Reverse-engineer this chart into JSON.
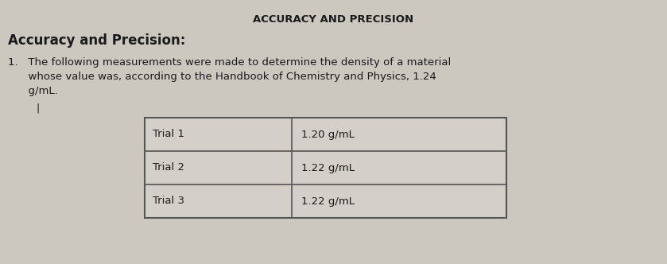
{
  "title": "ACCURACY AND PRECISION",
  "heading": "Accuracy and Precision:",
  "body_line1": "1.   The following measurements were made to determine the density of a material",
  "body_line2": "      whose value was, according to the Handbook of Chemistry and Physics, 1.24",
  "body_line3": "      g/mL.",
  "table_trials": [
    "Trial 1",
    "Trial 2",
    "Trial 3"
  ],
  "table_values": [
    "1.20 g/mL",
    "1.22 g/mL",
    "1.22 g/mL"
  ],
  "bg_color": "#ccc8c0",
  "table_bg": "#d4d0c9",
  "border_color": "#555555",
  "text_color": "#1a1a1a",
  "title_fontsize": 9.5,
  "heading_fontsize": 12,
  "body_fontsize": 9.5,
  "table_fontsize": 9.5
}
